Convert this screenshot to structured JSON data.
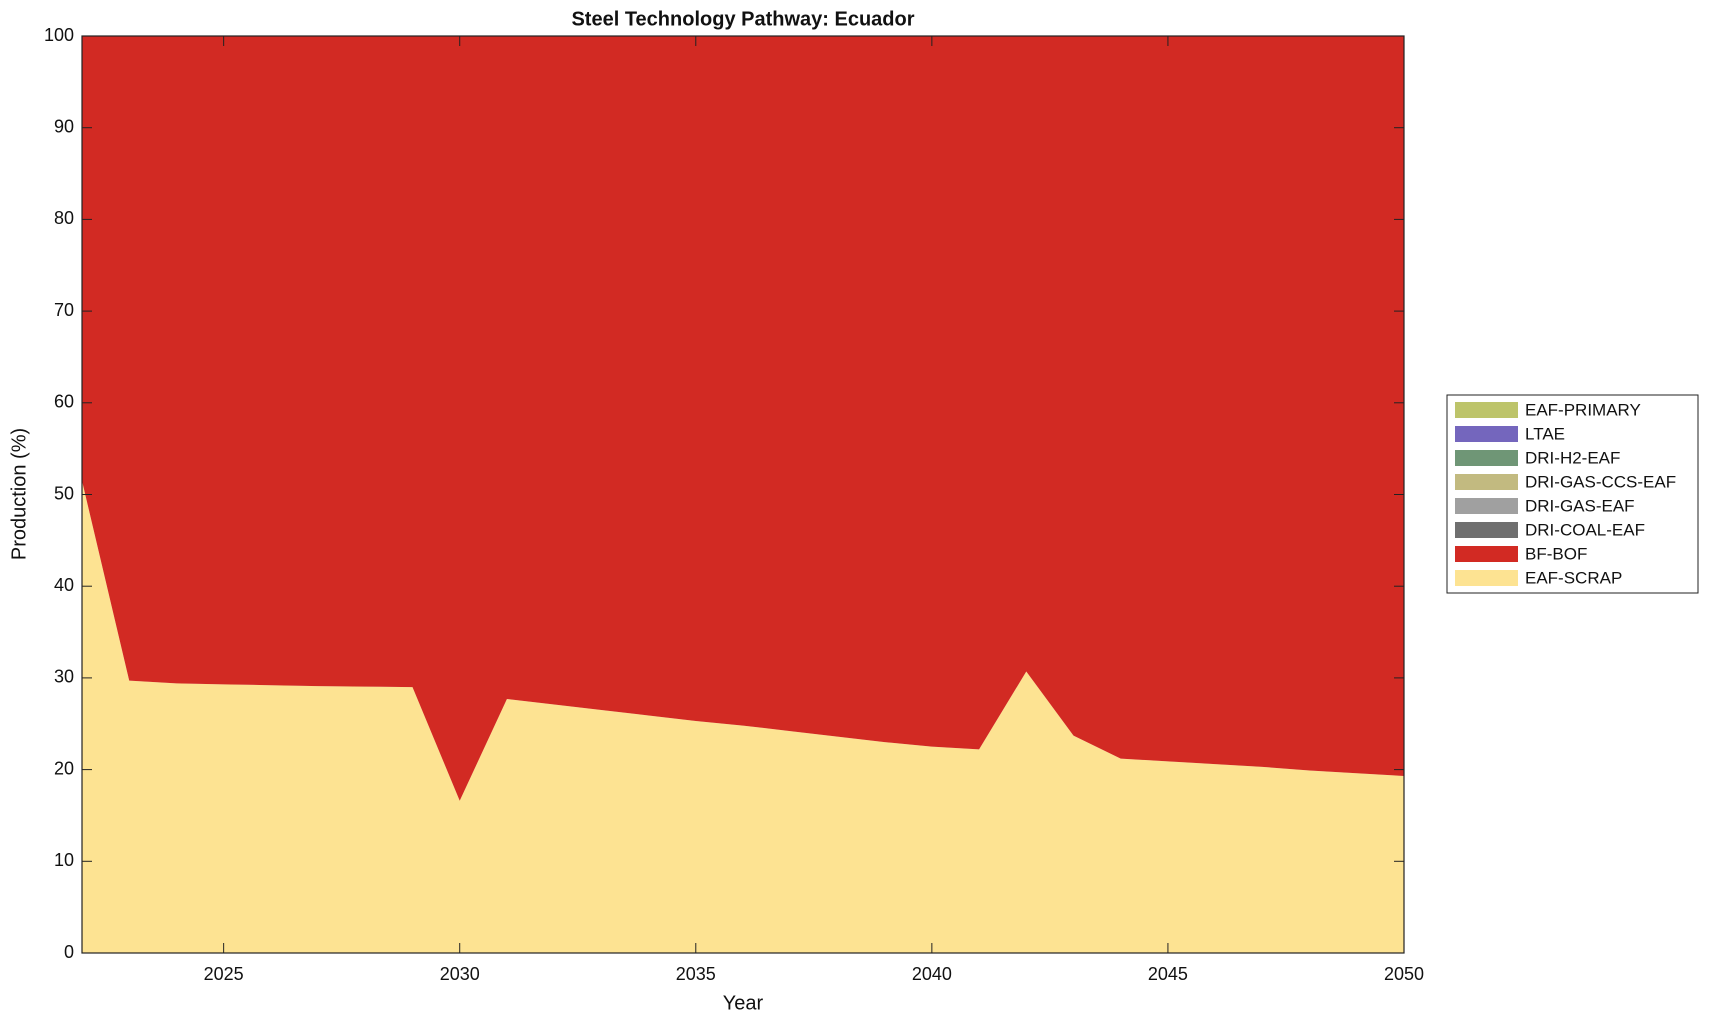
{
  "chart_data": {
    "type": "stacked-area",
    "title": "Steel Technology Pathway: Ecuador",
    "xlabel": "Year",
    "ylabel": "Production (%)",
    "x": [
      2022,
      2023,
      2024,
      2025,
      2026,
      2027,
      2028,
      2029,
      2030,
      2031,
      2032,
      2033,
      2034,
      2035,
      2036,
      2037,
      2038,
      2039,
      2040,
      2041,
      2042,
      2043,
      2044,
      2045,
      2046,
      2047,
      2048,
      2049,
      2050
    ],
    "series": [
      {
        "name": "EAF-SCRAP",
        "color": "#fde392",
        "values": [
          51.5,
          29.7,
          29.4,
          29.3,
          29.2,
          29.1,
          29.05,
          29.0,
          16.6,
          27.7,
          27.1,
          26.5,
          25.9,
          25.3,
          24.8,
          24.2,
          23.6,
          23.0,
          22.5,
          22.2,
          30.7,
          23.7,
          21.2,
          20.9,
          20.6,
          20.3,
          19.9,
          19.6,
          19.3
        ]
      },
      {
        "name": "BF-BOF",
        "color": "#d22a23",
        "values": [
          48.5,
          70.3,
          70.6,
          70.7,
          70.8,
          70.9,
          70.95,
          71.0,
          83.4,
          72.3,
          72.9,
          73.5,
          74.1,
          74.7,
          75.2,
          75.8,
          76.4,
          77.0,
          77.5,
          77.8,
          69.3,
          76.3,
          78.8,
          79.1,
          79.4,
          79.7,
          80.1,
          80.4,
          80.7
        ]
      },
      {
        "name": "DRI-COAL-EAF",
        "color": "#6f6f6f",
        "values": [
          0,
          0,
          0,
          0,
          0,
          0,
          0,
          0,
          0,
          0,
          0,
          0,
          0,
          0,
          0,
          0,
          0,
          0,
          0,
          0,
          0,
          0,
          0,
          0,
          0,
          0,
          0,
          0,
          0
        ]
      },
      {
        "name": "DRI-GAS-EAF",
        "color": "#a0a0a0",
        "values": [
          0,
          0,
          0,
          0,
          0,
          0,
          0,
          0,
          0,
          0,
          0,
          0,
          0,
          0,
          0,
          0,
          0,
          0,
          0,
          0,
          0,
          0,
          0,
          0,
          0,
          0,
          0,
          0,
          0
        ]
      },
      {
        "name": "DRI-GAS-CCS-EAF",
        "color": "#c2ba80",
        "values": [
          0,
          0,
          0,
          0,
          0,
          0,
          0,
          0,
          0,
          0,
          0,
          0,
          0,
          0,
          0,
          0,
          0,
          0,
          0,
          0,
          0,
          0,
          0,
          0,
          0,
          0,
          0,
          0,
          0
        ]
      },
      {
        "name": "DRI-H2-EAF",
        "color": "#6f9676",
        "values": [
          0,
          0,
          0,
          0,
          0,
          0,
          0,
          0,
          0,
          0,
          0,
          0,
          0,
          0,
          0,
          0,
          0,
          0,
          0,
          0,
          0,
          0,
          0,
          0,
          0,
          0,
          0,
          0,
          0
        ]
      },
      {
        "name": "LTAE",
        "color": "#7466bd",
        "values": [
          0,
          0,
          0,
          0,
          0,
          0,
          0,
          0,
          0,
          0,
          0,
          0,
          0,
          0,
          0,
          0,
          0,
          0,
          0,
          0,
          0,
          0,
          0,
          0,
          0,
          0,
          0,
          0,
          0
        ]
      },
      {
        "name": "EAF-PRIMARY",
        "color": "#bdc46a",
        "values": [
          0,
          0,
          0,
          0,
          0,
          0,
          0,
          0,
          0,
          0,
          0,
          0,
          0,
          0,
          0,
          0,
          0,
          0,
          0,
          0,
          0,
          0,
          0,
          0,
          0,
          0,
          0,
          0,
          0
        ]
      }
    ],
    "xlim": [
      2022,
      2050
    ],
    "xticks": [
      2025,
      2030,
      2035,
      2040,
      2045,
      2050
    ],
    "ylim": [
      0,
      100
    ],
    "yticks": [
      0,
      10,
      20,
      30,
      40,
      50,
      60,
      70,
      80,
      90,
      100
    ]
  }
}
